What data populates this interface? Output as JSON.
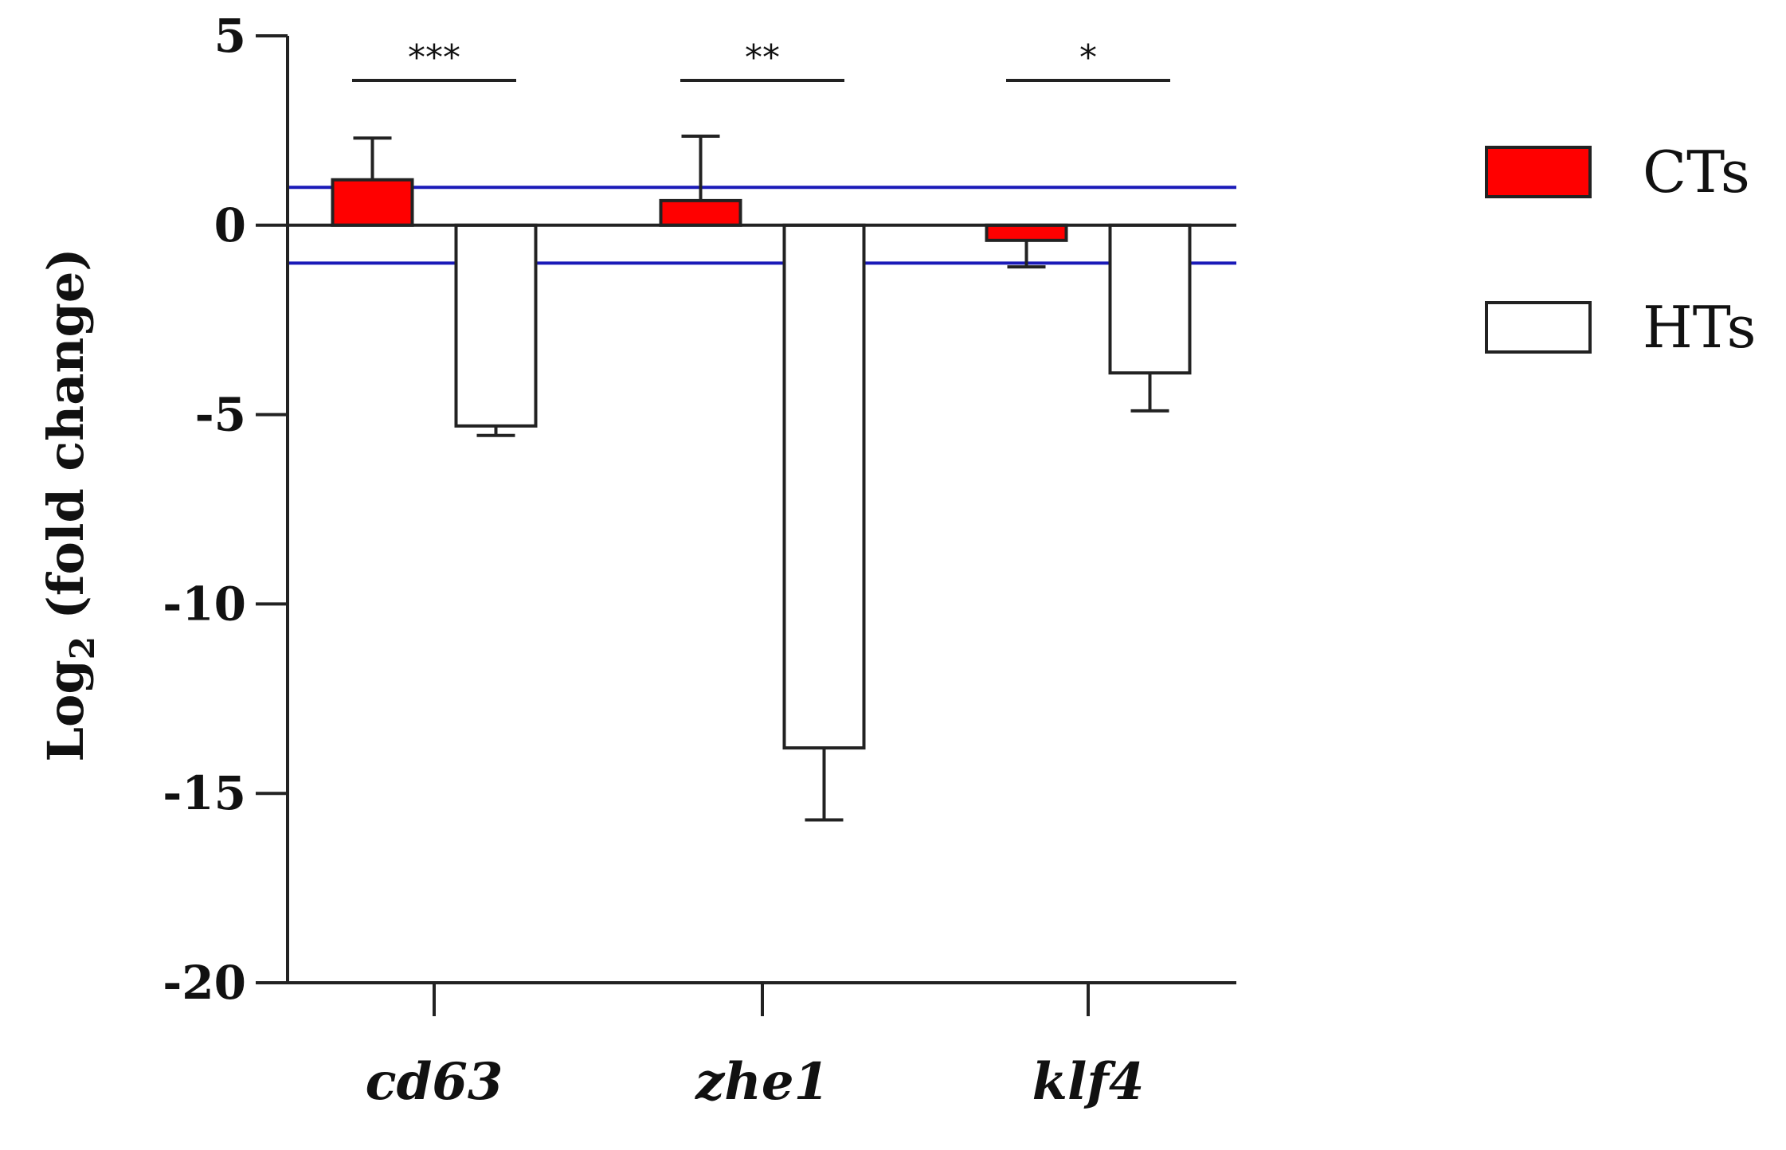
{
  "chart_data": {
    "type": "bar",
    "title": "",
    "xlabel": "",
    "ylabel_main": "Log",
    "ylabel_sub": "2",
    "ylabel_rest": " (fold change)",
    "categories": [
      "cd63",
      "zhe1",
      "klf4"
    ],
    "ylim": [
      -20,
      5
    ],
    "yticks": [
      5,
      0,
      -5,
      -10,
      -15,
      -20
    ],
    "ytick_labels": [
      "5",
      "0",
      "-5",
      "-10",
      "-15",
      "-20"
    ],
    "grid": false,
    "legend_position": "right",
    "series": [
      {
        "name": "CTs",
        "color": "#ff0000",
        "values": [
          1.2,
          0.65,
          -0.4
        ],
        "errors": [
          1.1,
          1.7,
          0.7
        ]
      },
      {
        "name": "HTs",
        "color": "#ffffff",
        "values": [
          -5.3,
          -13.8,
          -3.9
        ],
        "errors": [
          0.25,
          1.9,
          1.0
        ]
      }
    ],
    "reference_lines": [
      {
        "y": 1,
        "color": "#1a1ab8"
      },
      {
        "y": -1,
        "color": "#1a1ab8"
      }
    ],
    "significance": [
      {
        "category": "cd63",
        "label": "***"
      },
      {
        "category": "zhe1",
        "label": "**"
      },
      {
        "category": "klf4",
        "label": "*"
      }
    ]
  }
}
